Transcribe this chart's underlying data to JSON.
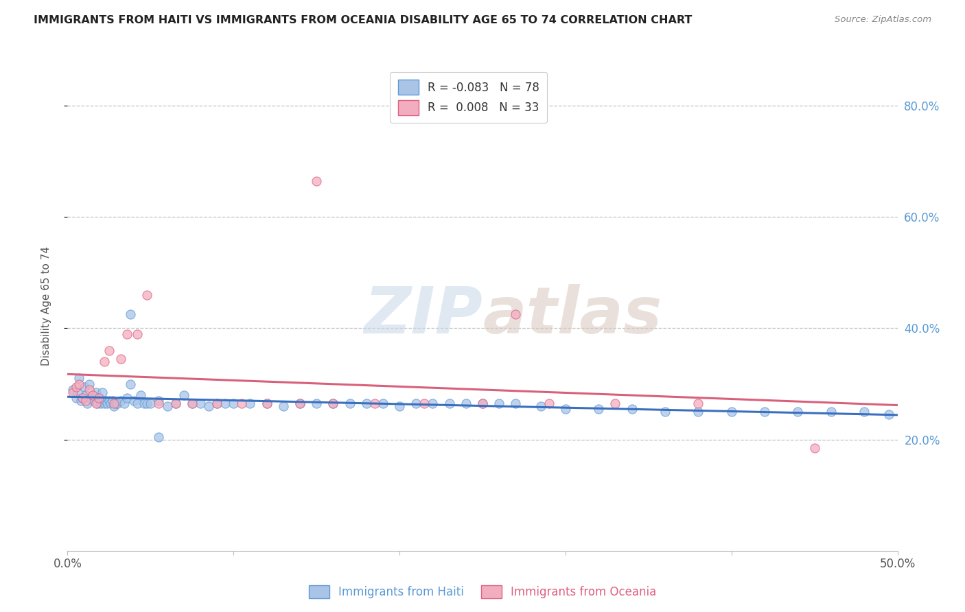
{
  "title": "IMMIGRANTS FROM HAITI VS IMMIGRANTS FROM OCEANIA DISABILITY AGE 65 TO 74 CORRELATION CHART",
  "source": "Source: ZipAtlas.com",
  "ylabel": "Disability Age 65 to 74",
  "xlim": [
    0.0,
    0.5
  ],
  "ylim": [
    0.0,
    0.88
  ],
  "xticks": [
    0.0,
    0.1,
    0.2,
    0.3,
    0.4,
    0.5
  ],
  "xticklabels_ends": {
    "0.0": "0.0%",
    "0.5": "50.0%"
  },
  "yticks_right": [
    0.2,
    0.4,
    0.6,
    0.8
  ],
  "yticklabels_right": [
    "20.0%",
    "40.0%",
    "60.0%",
    "80.0%"
  ],
  "haiti_color": "#aac4e8",
  "oceania_color": "#f2aec0",
  "haiti_edge_color": "#5b9bd5",
  "oceania_edge_color": "#e06080",
  "haiti_line_color": "#3a6fbf",
  "oceania_line_color": "#d9607a",
  "haiti_R": -0.083,
  "haiti_N": 78,
  "oceania_R": 0.008,
  "oceania_N": 33,
  "background_color": "#ffffff",
  "grid_color": "#bbbbbb",
  "watermark_zip": "ZIP",
  "watermark_atlas": "atlas",
  "haiti_scatter_x": [
    0.003,
    0.005,
    0.006,
    0.007,
    0.008,
    0.009,
    0.01,
    0.011,
    0.012,
    0.013,
    0.014,
    0.015,
    0.016,
    0.017,
    0.018,
    0.019,
    0.02,
    0.021,
    0.022,
    0.023,
    0.024,
    0.025,
    0.026,
    0.027,
    0.028,
    0.029,
    0.03,
    0.032,
    0.034,
    0.036,
    0.038,
    0.04,
    0.042,
    0.044,
    0.046,
    0.048,
    0.05,
    0.055,
    0.06,
    0.065,
    0.07,
    0.075,
    0.08,
    0.085,
    0.09,
    0.095,
    0.1,
    0.11,
    0.12,
    0.13,
    0.14,
    0.15,
    0.16,
    0.17,
    0.18,
    0.19,
    0.2,
    0.21,
    0.22,
    0.23,
    0.24,
    0.25,
    0.26,
    0.27,
    0.285,
    0.3,
    0.32,
    0.34,
    0.36,
    0.38,
    0.4,
    0.42,
    0.44,
    0.46,
    0.48,
    0.495,
    0.038,
    0.055
  ],
  "haiti_scatter_y": [
    0.29,
    0.275,
    0.285,
    0.31,
    0.27,
    0.275,
    0.295,
    0.28,
    0.265,
    0.3,
    0.275,
    0.28,
    0.27,
    0.285,
    0.265,
    0.275,
    0.265,
    0.285,
    0.265,
    0.27,
    0.265,
    0.27,
    0.265,
    0.27,
    0.26,
    0.265,
    0.265,
    0.27,
    0.265,
    0.275,
    0.3,
    0.27,
    0.265,
    0.28,
    0.265,
    0.265,
    0.265,
    0.27,
    0.26,
    0.265,
    0.28,
    0.265,
    0.265,
    0.26,
    0.265,
    0.265,
    0.265,
    0.265,
    0.265,
    0.26,
    0.265,
    0.265,
    0.265,
    0.265,
    0.265,
    0.265,
    0.26,
    0.265,
    0.265,
    0.265,
    0.265,
    0.265,
    0.265,
    0.265,
    0.26,
    0.255,
    0.255,
    0.255,
    0.25,
    0.25,
    0.25,
    0.25,
    0.25,
    0.25,
    0.25,
    0.245,
    0.425,
    0.205
  ],
  "oceania_scatter_x": [
    0.003,
    0.005,
    0.007,
    0.009,
    0.011,
    0.013,
    0.015,
    0.017,
    0.019,
    0.022,
    0.025,
    0.028,
    0.032,
    0.036,
    0.042,
    0.048,
    0.055,
    0.065,
    0.075,
    0.09,
    0.105,
    0.12,
    0.14,
    0.16,
    0.185,
    0.215,
    0.25,
    0.29,
    0.33,
    0.38,
    0.15,
    0.27,
    0.45
  ],
  "oceania_scatter_y": [
    0.285,
    0.295,
    0.3,
    0.275,
    0.27,
    0.29,
    0.28,
    0.265,
    0.275,
    0.34,
    0.36,
    0.265,
    0.345,
    0.39,
    0.39,
    0.46,
    0.265,
    0.265,
    0.265,
    0.265,
    0.265,
    0.265,
    0.265,
    0.265,
    0.265,
    0.265,
    0.265,
    0.265,
    0.265,
    0.265,
    0.665,
    0.425,
    0.185
  ]
}
